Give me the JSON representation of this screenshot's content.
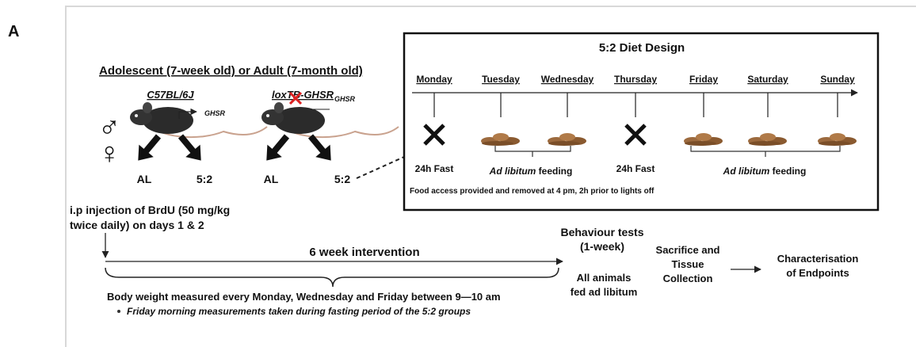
{
  "panel_label": "A",
  "cohort_title": "Adolescent (7-week old) or Adult (7-month old)",
  "sex_symbols": [
    "♂",
    "♀"
  ],
  "strains": [
    {
      "name": "C57BL/6J",
      "gene": "GHSR",
      "groups": [
        "AL",
        "5:2"
      ]
    },
    {
      "name": "loxTB-GHSR",
      "gene": "GHSR",
      "groups": [
        "AL",
        "5:2"
      ]
    }
  ],
  "diet_design": {
    "title": "5:2 Diet Design",
    "days": [
      "Monday",
      "Tuesday",
      "Wednesday",
      "Thursday",
      "Friday",
      "Saturday",
      "Sunday"
    ],
    "fast_label": "24h  Fast",
    "feeding_label": {
      "italic": "Ad libitum",
      "plain": " feeding"
    },
    "note": "Food access provided and removed at 4  pm, 2h  prior to lights off"
  },
  "injection": [
    "i.p injection of BrdU (50  mg/kg",
    "twice daily) on days 1 & 2"
  ],
  "intervention": "6 week intervention",
  "behaviour": [
    "Behaviour tests",
    "(1-week)"
  ],
  "ad_libitum": [
    "All animals",
    "fed ad libitum"
  ],
  "sacrifice": [
    "Sacrifice and",
    "Tissue",
    "Collection"
  ],
  "endpoints": [
    "Characterisation",
    "of Endpoints"
  ],
  "body_weight": "Body weight measured every Monday, Wednesday and Friday between 9—10  am",
  "body_weight_note": "Friday morning measurements taken during fasting period of the 5:2 groups"
}
